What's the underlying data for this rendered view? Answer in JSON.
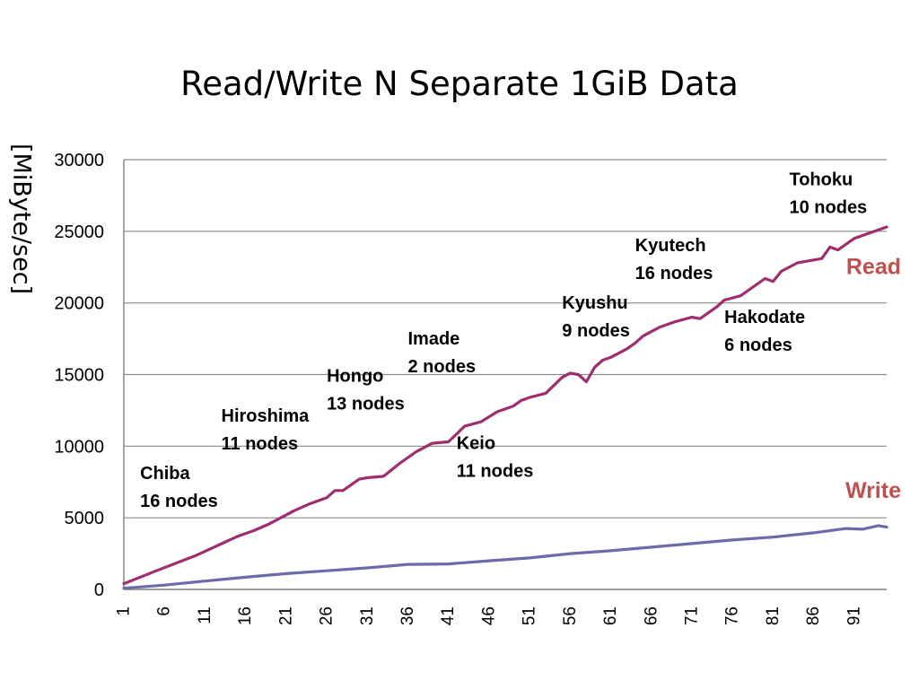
{
  "slide": {
    "title": "Read/Write N Separate 1GiB Data",
    "ylabel": "[MiByte/sec]"
  },
  "colors": {
    "read_line": "#9e2f6e",
    "write_line": "#6c6aa8",
    "series_label": "#c0504d",
    "grid": "#8c8c8c"
  },
  "chart_data": {
    "type": "line",
    "title": "Read/Write N Separate 1GiB Data",
    "xlabel": "",
    "ylabel": "[MiByte/sec]",
    "ylim": [
      0,
      30000
    ],
    "xlim": [
      1,
      95
    ],
    "yticks": [
      0,
      5000,
      10000,
      15000,
      20000,
      25000,
      30000
    ],
    "xticks": [
      1,
      6,
      11,
      16,
      21,
      26,
      31,
      36,
      41,
      46,
      51,
      56,
      61,
      66,
      71,
      76,
      81,
      86,
      91
    ],
    "grid": true,
    "series": [
      {
        "name": "Read",
        "points": [
          [
            1,
            400
          ],
          [
            5,
            1300
          ],
          [
            10,
            2400
          ],
          [
            15,
            3700
          ],
          [
            17,
            4100
          ],
          [
            19,
            4600
          ],
          [
            22,
            5500
          ],
          [
            24,
            6000
          ],
          [
            26,
            6400
          ],
          [
            27,
            6900
          ],
          [
            28,
            6900
          ],
          [
            30,
            7700
          ],
          [
            31,
            7800
          ],
          [
            33,
            7900
          ],
          [
            35,
            8800
          ],
          [
            37,
            9600
          ],
          [
            39,
            10200
          ],
          [
            41,
            10300
          ],
          [
            43,
            11400
          ],
          [
            45,
            11700
          ],
          [
            47,
            12400
          ],
          [
            49,
            12800
          ],
          [
            50,
            13200
          ],
          [
            51,
            13400
          ],
          [
            53,
            13700
          ],
          [
            55,
            14800
          ],
          [
            56,
            15100
          ],
          [
            57,
            15000
          ],
          [
            58,
            14500
          ],
          [
            59,
            15500
          ],
          [
            60,
            16000
          ],
          [
            61,
            16200
          ],
          [
            63,
            16800
          ],
          [
            64,
            17200
          ],
          [
            65,
            17700
          ],
          [
            67,
            18300
          ],
          [
            69,
            18700
          ],
          [
            71,
            19000
          ],
          [
            72,
            18900
          ],
          [
            74,
            19700
          ],
          [
            75,
            20200
          ],
          [
            77,
            20500
          ],
          [
            80,
            21700
          ],
          [
            81,
            21500
          ],
          [
            82,
            22200
          ],
          [
            84,
            22800
          ],
          [
            86,
            23000
          ],
          [
            87,
            23100
          ],
          [
            88,
            23900
          ],
          [
            89,
            23700
          ],
          [
            91,
            24500
          ],
          [
            93,
            24900
          ],
          [
            95,
            25300
          ]
        ]
      },
      {
        "name": "Write",
        "points": [
          [
            1,
            80
          ],
          [
            6,
            300
          ],
          [
            11,
            580
          ],
          [
            16,
            850
          ],
          [
            21,
            1100
          ],
          [
            26,
            1300
          ],
          [
            31,
            1500
          ],
          [
            36,
            1750
          ],
          [
            41,
            1780
          ],
          [
            46,
            2000
          ],
          [
            51,
            2200
          ],
          [
            56,
            2500
          ],
          [
            61,
            2700
          ],
          [
            66,
            2950
          ],
          [
            71,
            3200
          ],
          [
            76,
            3450
          ],
          [
            81,
            3650
          ],
          [
            86,
            3950
          ],
          [
            90,
            4250
          ],
          [
            92,
            4200
          ],
          [
            94,
            4450
          ],
          [
            95,
            4350
          ]
        ]
      }
    ],
    "series_labels": [
      {
        "text": "Read",
        "x": 95,
        "y": 22000
      },
      {
        "text": "Write",
        "x": 95,
        "y": 6400
      }
    ],
    "annotations": [
      {
        "line1": "Chiba",
        "line2": "16 nodes",
        "x": 3,
        "y": 7700
      },
      {
        "line1": "Hiroshima",
        "line2": "11 nodes",
        "x": 13,
        "y": 11700
      },
      {
        "line1": "Hongo",
        "line2": "13 nodes",
        "x": 26,
        "y": 14500
      },
      {
        "line1": "Imade",
        "line2": "2 nodes",
        "x": 36,
        "y": 17100
      },
      {
        "line1": "Keio",
        "line2": "11 nodes",
        "x": 42,
        "y": 9800
      },
      {
        "line1": "Kyushu",
        "line2": "9 nodes",
        "x": 55,
        "y": 19600
      },
      {
        "line1": "Kyutech",
        "line2": "16 nodes",
        "x": 64,
        "y": 23600
      },
      {
        "line1": "Hakodate",
        "line2": "6 nodes",
        "x": 75,
        "y": 18600
      },
      {
        "line1": "Tohoku",
        "line2": "10 nodes",
        "x": 83,
        "y": 28200
      }
    ]
  }
}
